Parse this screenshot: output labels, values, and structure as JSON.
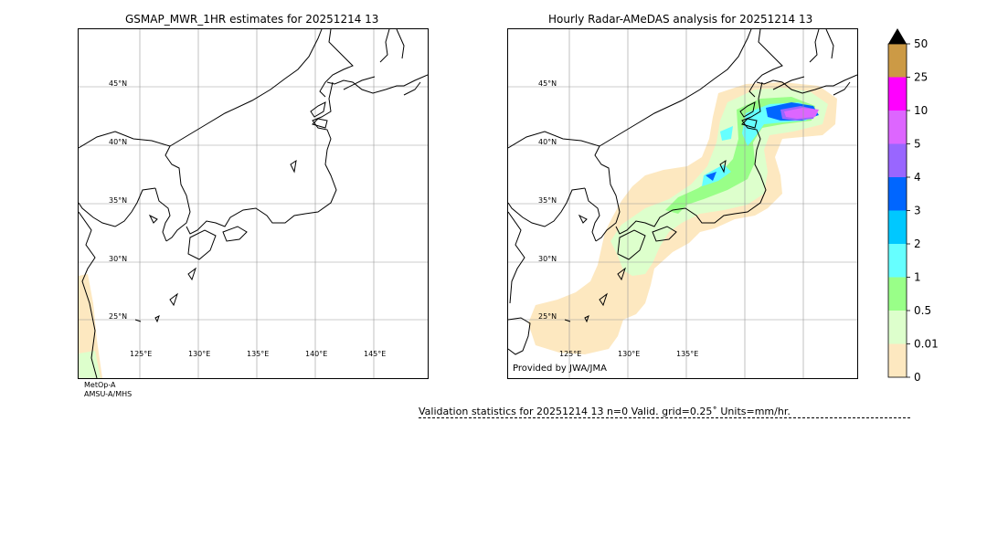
{
  "left_panel": {
    "title": "GSMAP_MWR_1HR estimates for 20251214 13",
    "satellite_note": [
      "MetOp-A",
      "AMSU-A/MHS"
    ]
  },
  "right_panel": {
    "title": "Hourly Radar-AMeDAS analysis for 20251214 13",
    "provider": "Provided by JWA/JMA"
  },
  "map": {
    "lat_labels": [
      "45°N",
      "40°N",
      "35°N",
      "30°N",
      "25°N"
    ],
    "lon_labels_left": [
      "125°E",
      "130°E",
      "135°E",
      "140°E",
      "145°E"
    ],
    "lon_labels_right": [
      "125°E",
      "130°E",
      "135°E"
    ]
  },
  "colorbar": {
    "labels": [
      "50",
      "25",
      "10",
      "5",
      "4",
      "3",
      "2",
      "1",
      "0.5",
      "0.01",
      "0"
    ],
    "colors": [
      "#cc9a45",
      "#ff00ff",
      "#dd66ff",
      "#9966ff",
      "#0066ff",
      "#00c8ff",
      "#66ffff",
      "#99ff88",
      "#ddffcc",
      "#fde8c0"
    ],
    "extend_color": "#000000"
  },
  "validation": {
    "text": "Validation statistics for 20251214 13  n=0 Valid. grid=0.25˚ Units=mm/hr."
  }
}
